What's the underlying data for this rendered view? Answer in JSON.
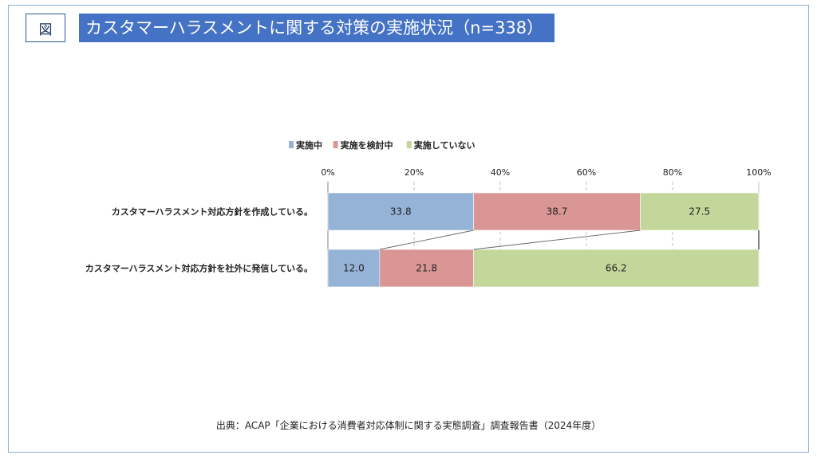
{
  "header": {
    "fig_label": "図",
    "title": "カスタマーハラスメントに関する対策の実施状況（n=338）"
  },
  "source_note": "出典：ACAP「企業における消費者対応体制に関する実態調査」調査報告書（2024年度）",
  "colors": {
    "series": [
      "#95b3d7",
      "#da9694",
      "#c4d79b"
    ],
    "title_bg": "#4472c4",
    "frame": "#8fb0d6"
  },
  "chart_data": {
    "type": "bar",
    "orientation": "horizontal",
    "stacked": "percent",
    "title": "",
    "xlabel": "",
    "ylabel": "",
    "xlim": [
      0,
      100
    ],
    "x_ticks": [
      "0%",
      "20%",
      "40%",
      "60%",
      "80%",
      "100%"
    ],
    "categories": [
      "カスタマーハラスメント対応方針を作成している。",
      "カスタマーハラスメント対応方針を社外に発信している。"
    ],
    "series": [
      {
        "name": "実施中",
        "values": [
          33.8,
          12.0
        ],
        "labels": [
          "33.8",
          "12.0"
        ]
      },
      {
        "name": "実施を検討中",
        "values": [
          38.7,
          21.8
        ],
        "labels": [
          "38.7",
          "21.8"
        ]
      },
      {
        "name": "実施していない",
        "values": [
          27.5,
          66.2
        ],
        "labels": [
          "27.5",
          "66.2"
        ]
      }
    ],
    "grid": true,
    "legend": "top",
    "series_connector_lines": true
  }
}
